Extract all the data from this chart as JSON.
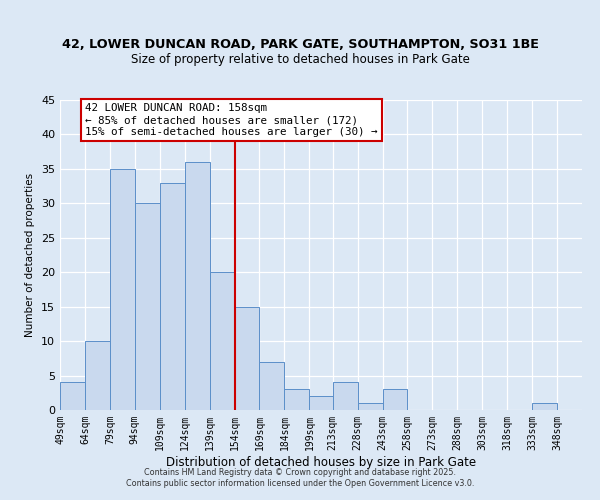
{
  "title": "42, LOWER DUNCAN ROAD, PARK GATE, SOUTHAMPTON, SO31 1BE",
  "subtitle": "Size of property relative to detached houses in Park Gate",
  "xlabel": "Distribution of detached houses by size in Park Gate",
  "ylabel": "Number of detached properties",
  "bar_edges": [
    49,
    64,
    79,
    94,
    109,
    124,
    139,
    154,
    169,
    184,
    199,
    213,
    228,
    243,
    258,
    273,
    288,
    303,
    318,
    333,
    348
  ],
  "bar_heights": [
    4,
    10,
    35,
    30,
    33,
    36,
    20,
    15,
    7,
    3,
    2,
    4,
    1,
    3,
    0,
    0,
    0,
    0,
    0,
    1
  ],
  "bar_color": "#c9d9ee",
  "bar_edgecolor": "#5b8fc9",
  "vline_x": 154,
  "vline_color": "#cc0000",
  "annotation_title": "42 LOWER DUNCAN ROAD: 158sqm",
  "annotation_line1": "← 85% of detached houses are smaller (172)",
  "annotation_line2": "15% of semi-detached houses are larger (30) →",
  "annotation_box_edgecolor": "#cc0000",
  "ylim": [
    0,
    45
  ],
  "yticks": [
    0,
    5,
    10,
    15,
    20,
    25,
    30,
    35,
    40,
    45
  ],
  "tick_labels": [
    "49sqm",
    "64sqm",
    "79sqm",
    "94sqm",
    "109sqm",
    "124sqm",
    "139sqm",
    "154sqm",
    "169sqm",
    "184sqm",
    "199sqm",
    "213sqm",
    "228sqm",
    "243sqm",
    "258sqm",
    "273sqm",
    "288sqm",
    "303sqm",
    "318sqm",
    "333sqm",
    "348sqm"
  ],
  "background_color": "#dce8f5",
  "footer_line1": "Contains HM Land Registry data © Crown copyright and database right 2025.",
  "footer_line2": "Contains public sector information licensed under the Open Government Licence v3.0."
}
